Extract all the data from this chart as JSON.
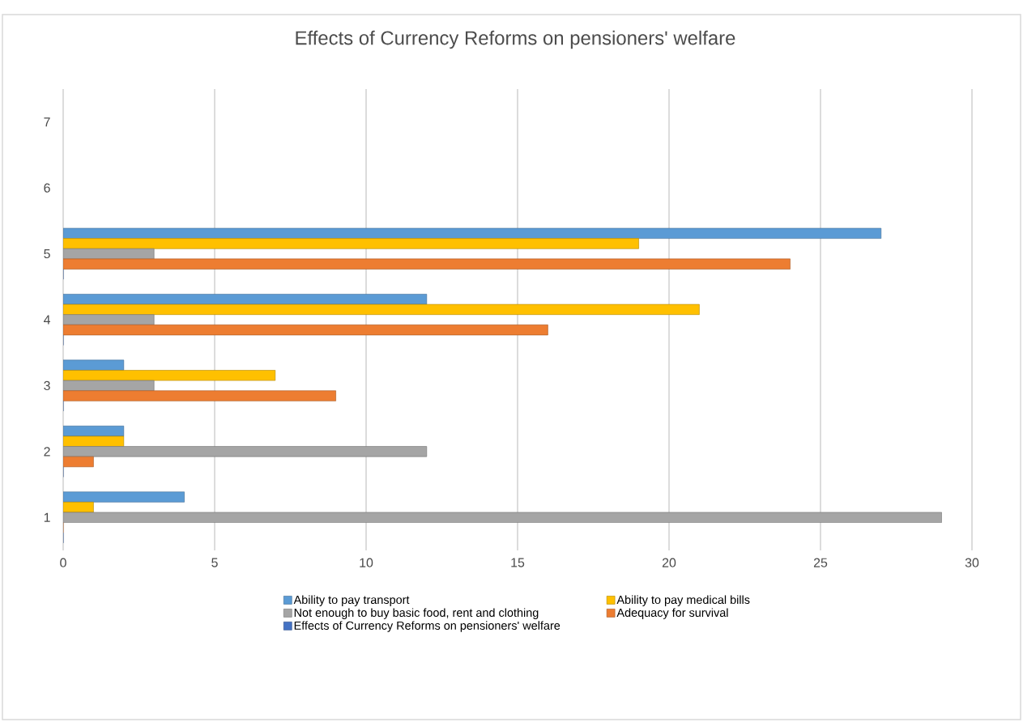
{
  "chart_data": {
    "type": "bar",
    "orientation": "horizontal",
    "title": "Effects of Currency Reforms on pensioners' welfare",
    "categories": [
      "7",
      "6",
      "5",
      "4",
      "3",
      "2",
      "1"
    ],
    "series": [
      {
        "name": "Ability to pay transport",
        "color": "#5b9bd5",
        "values": [
          null,
          null,
          27,
          12,
          2,
          2,
          4
        ]
      },
      {
        "name": "Ability to pay medical bills",
        "color": "#ffc000",
        "values": [
          null,
          null,
          19,
          21,
          7,
          2,
          1
        ]
      },
      {
        "name": "Not enough to buy basic food, rent and clothing",
        "color": "#a5a5a5",
        "values": [
          null,
          null,
          3,
          3,
          3,
          12,
          29
        ]
      },
      {
        "name": "Adequacy for survival",
        "color": "#ed7d31",
        "values": [
          null,
          null,
          24,
          16,
          9,
          1,
          0
        ]
      },
      {
        "name": "Effects of Currency Reforms on pensioners' welfare",
        "color": "#4472c4",
        "values": [
          null,
          null,
          0,
          0,
          0,
          0,
          0
        ]
      }
    ],
    "xlim": [
      0,
      30
    ],
    "xticks": [
      0,
      5,
      10,
      15,
      20,
      25,
      30
    ],
    "grid": "x",
    "legend": "bottom"
  }
}
